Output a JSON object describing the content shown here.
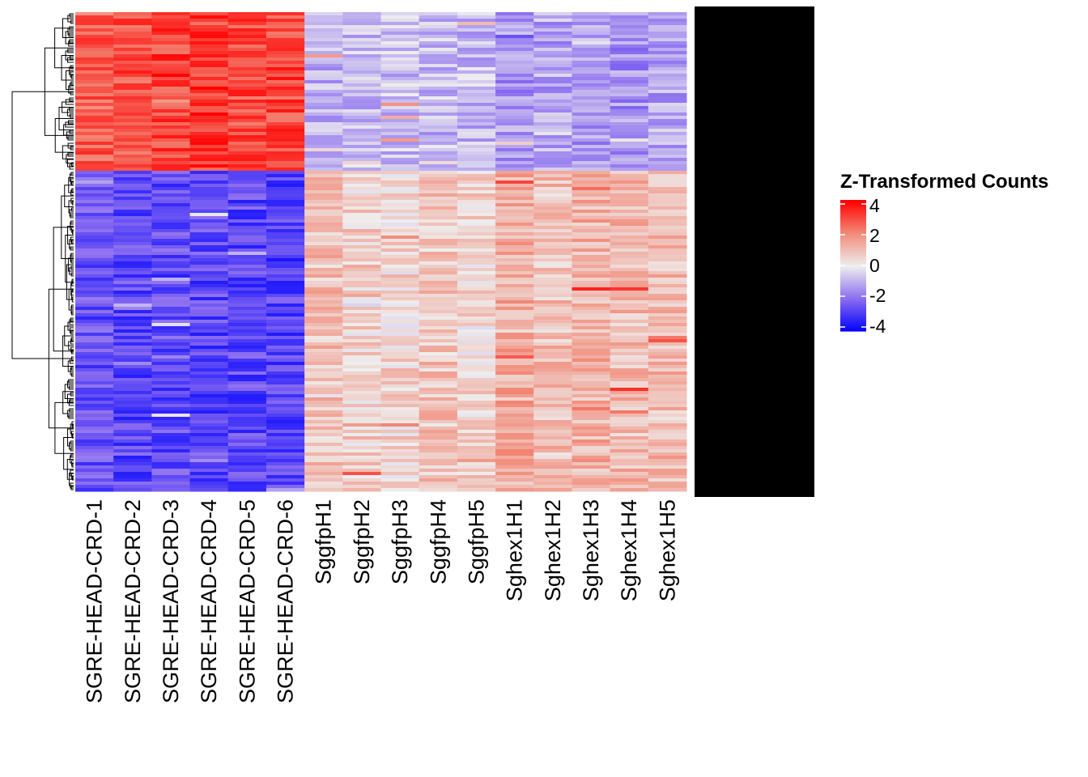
{
  "chart_data": {
    "type": "heatmap",
    "columns": [
      "SGRE-HEAD-CRD-1",
      "SGRE-HEAD-CRD-2",
      "SGRE-HEAD-CRD-3",
      "SGRE-HEAD-CRD-4",
      "SGRE-HEAD-CRD-5",
      "SGRE-HEAD-CRD-6",
      "SggfpH1",
      "SggfpH2",
      "SggfpH3",
      "SggfpH4",
      "SggfpH5",
      "Sghex1H1",
      "Sghex1H2",
      "Sghex1H3",
      "Sghex1H4",
      "Sghex1H5"
    ],
    "row_clusters": [
      {
        "cluster": "upper",
        "mean_z": [
          2.6,
          2.9,
          3.0,
          3.1,
          2.9,
          3.0,
          -0.9,
          -0.8,
          -0.7,
          -0.8,
          -0.8,
          -1.3,
          -1.1,
          -1.2,
          -1.4,
          -1.1
        ]
      },
      {
        "cluster": "lower",
        "mean_z": [
          -2.5,
          -2.7,
          -2.6,
          -2.7,
          -2.7,
          -2.8,
          0.9,
          0.6,
          0.5,
          0.8,
          0.5,
          1.3,
          0.9,
          1.2,
          1.0,
          1.0
        ]
      }
    ],
    "row_labels_legible": false,
    "row_dendrogram": true,
    "legend": {
      "title": "Z-Transformed Counts",
      "ticks": [
        4,
        2,
        0,
        -2,
        -4
      ],
      "placement": "right"
    },
    "color_scale": {
      "min": -4,
      "max": 4,
      "low": "#0000ff",
      "mid": "#eeeeee",
      "high": "#ff0000"
    }
  }
}
